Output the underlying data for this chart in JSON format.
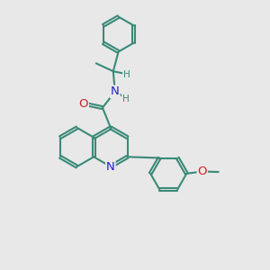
{
  "bg_color": "#e8e8e8",
  "bond_color": "#3a8a78",
  "bond_width": 1.5,
  "dbo": 0.05,
  "atom_colors": {
    "N": "#2222cc",
    "O": "#cc2222",
    "H": "#3a8a78"
  },
  "fs_large": 9.5,
  "fs_small": 7.5,
  "figsize": [
    3.0,
    3.0
  ],
  "dpi": 100
}
